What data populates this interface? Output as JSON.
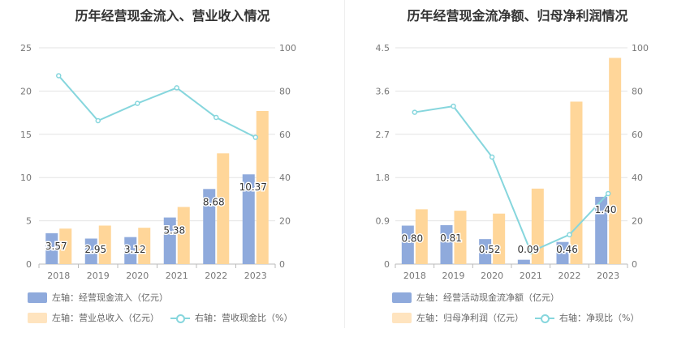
{
  "colors": {
    "bar_blue": "#8faadc",
    "bar_yellow": "#ffd699",
    "line_cyan": "#86d6dd",
    "grid": "#e3e3e3"
  },
  "chart_data": [
    {
      "type": "bar",
      "title": "历年经营现金流入、营业收入情况",
      "categories": [
        "2018",
        "2019",
        "2020",
        "2021",
        "2022",
        "2023"
      ],
      "left_axis": {
        "ylim": [
          0,
          25
        ],
        "ticks": [
          "0",
          "5",
          "10",
          "15",
          "20",
          "25"
        ]
      },
      "right_axis": {
        "ylim": [
          0,
          100
        ],
        "ticks": [
          "0",
          "20",
          "40",
          "60",
          "80",
          "100"
        ]
      },
      "series": [
        {
          "name": "左轴：经营现金流入（亿元）",
          "type": "bar",
          "axis": "left",
          "color": "#8faadc",
          "values": [
            3.57,
            2.95,
            3.12,
            5.38,
            8.68,
            10.37
          ],
          "labels": [
            "3.57",
            "2.95",
            "3.12",
            "5.38",
            "8.68",
            "10.37"
          ]
        },
        {
          "name": "左轴：营业总收入（亿元）",
          "type": "bar",
          "axis": "left",
          "color": "#ffd699",
          "values": [
            4.1,
            4.45,
            4.2,
            6.6,
            12.8,
            17.7
          ]
        },
        {
          "name": "右轴：营收现金比（%）",
          "type": "line",
          "axis": "right",
          "color": "#86d6dd",
          "values": [
            87.1,
            66.3,
            74.3,
            81.5,
            67.8,
            58.6
          ]
        }
      ]
    },
    {
      "type": "bar",
      "title": "历年经营现金流净额、归母净利润情况",
      "categories": [
        "2018",
        "2019",
        "2020",
        "2021",
        "2022",
        "2023"
      ],
      "left_axis": {
        "ylim": [
          0,
          4.5
        ],
        "ticks": [
          "0",
          "0.9",
          "1.8",
          "2.7",
          "3.6",
          "4.5"
        ]
      },
      "right_axis": {
        "ylim": [
          0,
          100
        ],
        "ticks": [
          "0",
          "20",
          "40",
          "60",
          "80",
          "100"
        ]
      },
      "series": [
        {
          "name": "左轴：经营活动现金流净额（亿元）",
          "type": "bar",
          "axis": "left",
          "color": "#8faadc",
          "values": [
            0.8,
            0.81,
            0.52,
            0.09,
            0.46,
            1.4
          ],
          "labels": [
            "0.80",
            "0.81",
            "0.52",
            "0.09",
            "0.46",
            "1.40"
          ]
        },
        {
          "name": "左轴：归母净利润（亿元）",
          "type": "bar",
          "axis": "left",
          "color": "#ffd699",
          "values": [
            1.14,
            1.11,
            1.05,
            1.57,
            3.38,
            4.29
          ]
        },
        {
          "name": "右轴：净现比（%）",
          "type": "line",
          "axis": "right",
          "color": "#86d6dd",
          "values": [
            70.2,
            73.0,
            49.5,
            5.7,
            13.6,
            32.6
          ]
        }
      ]
    }
  ]
}
